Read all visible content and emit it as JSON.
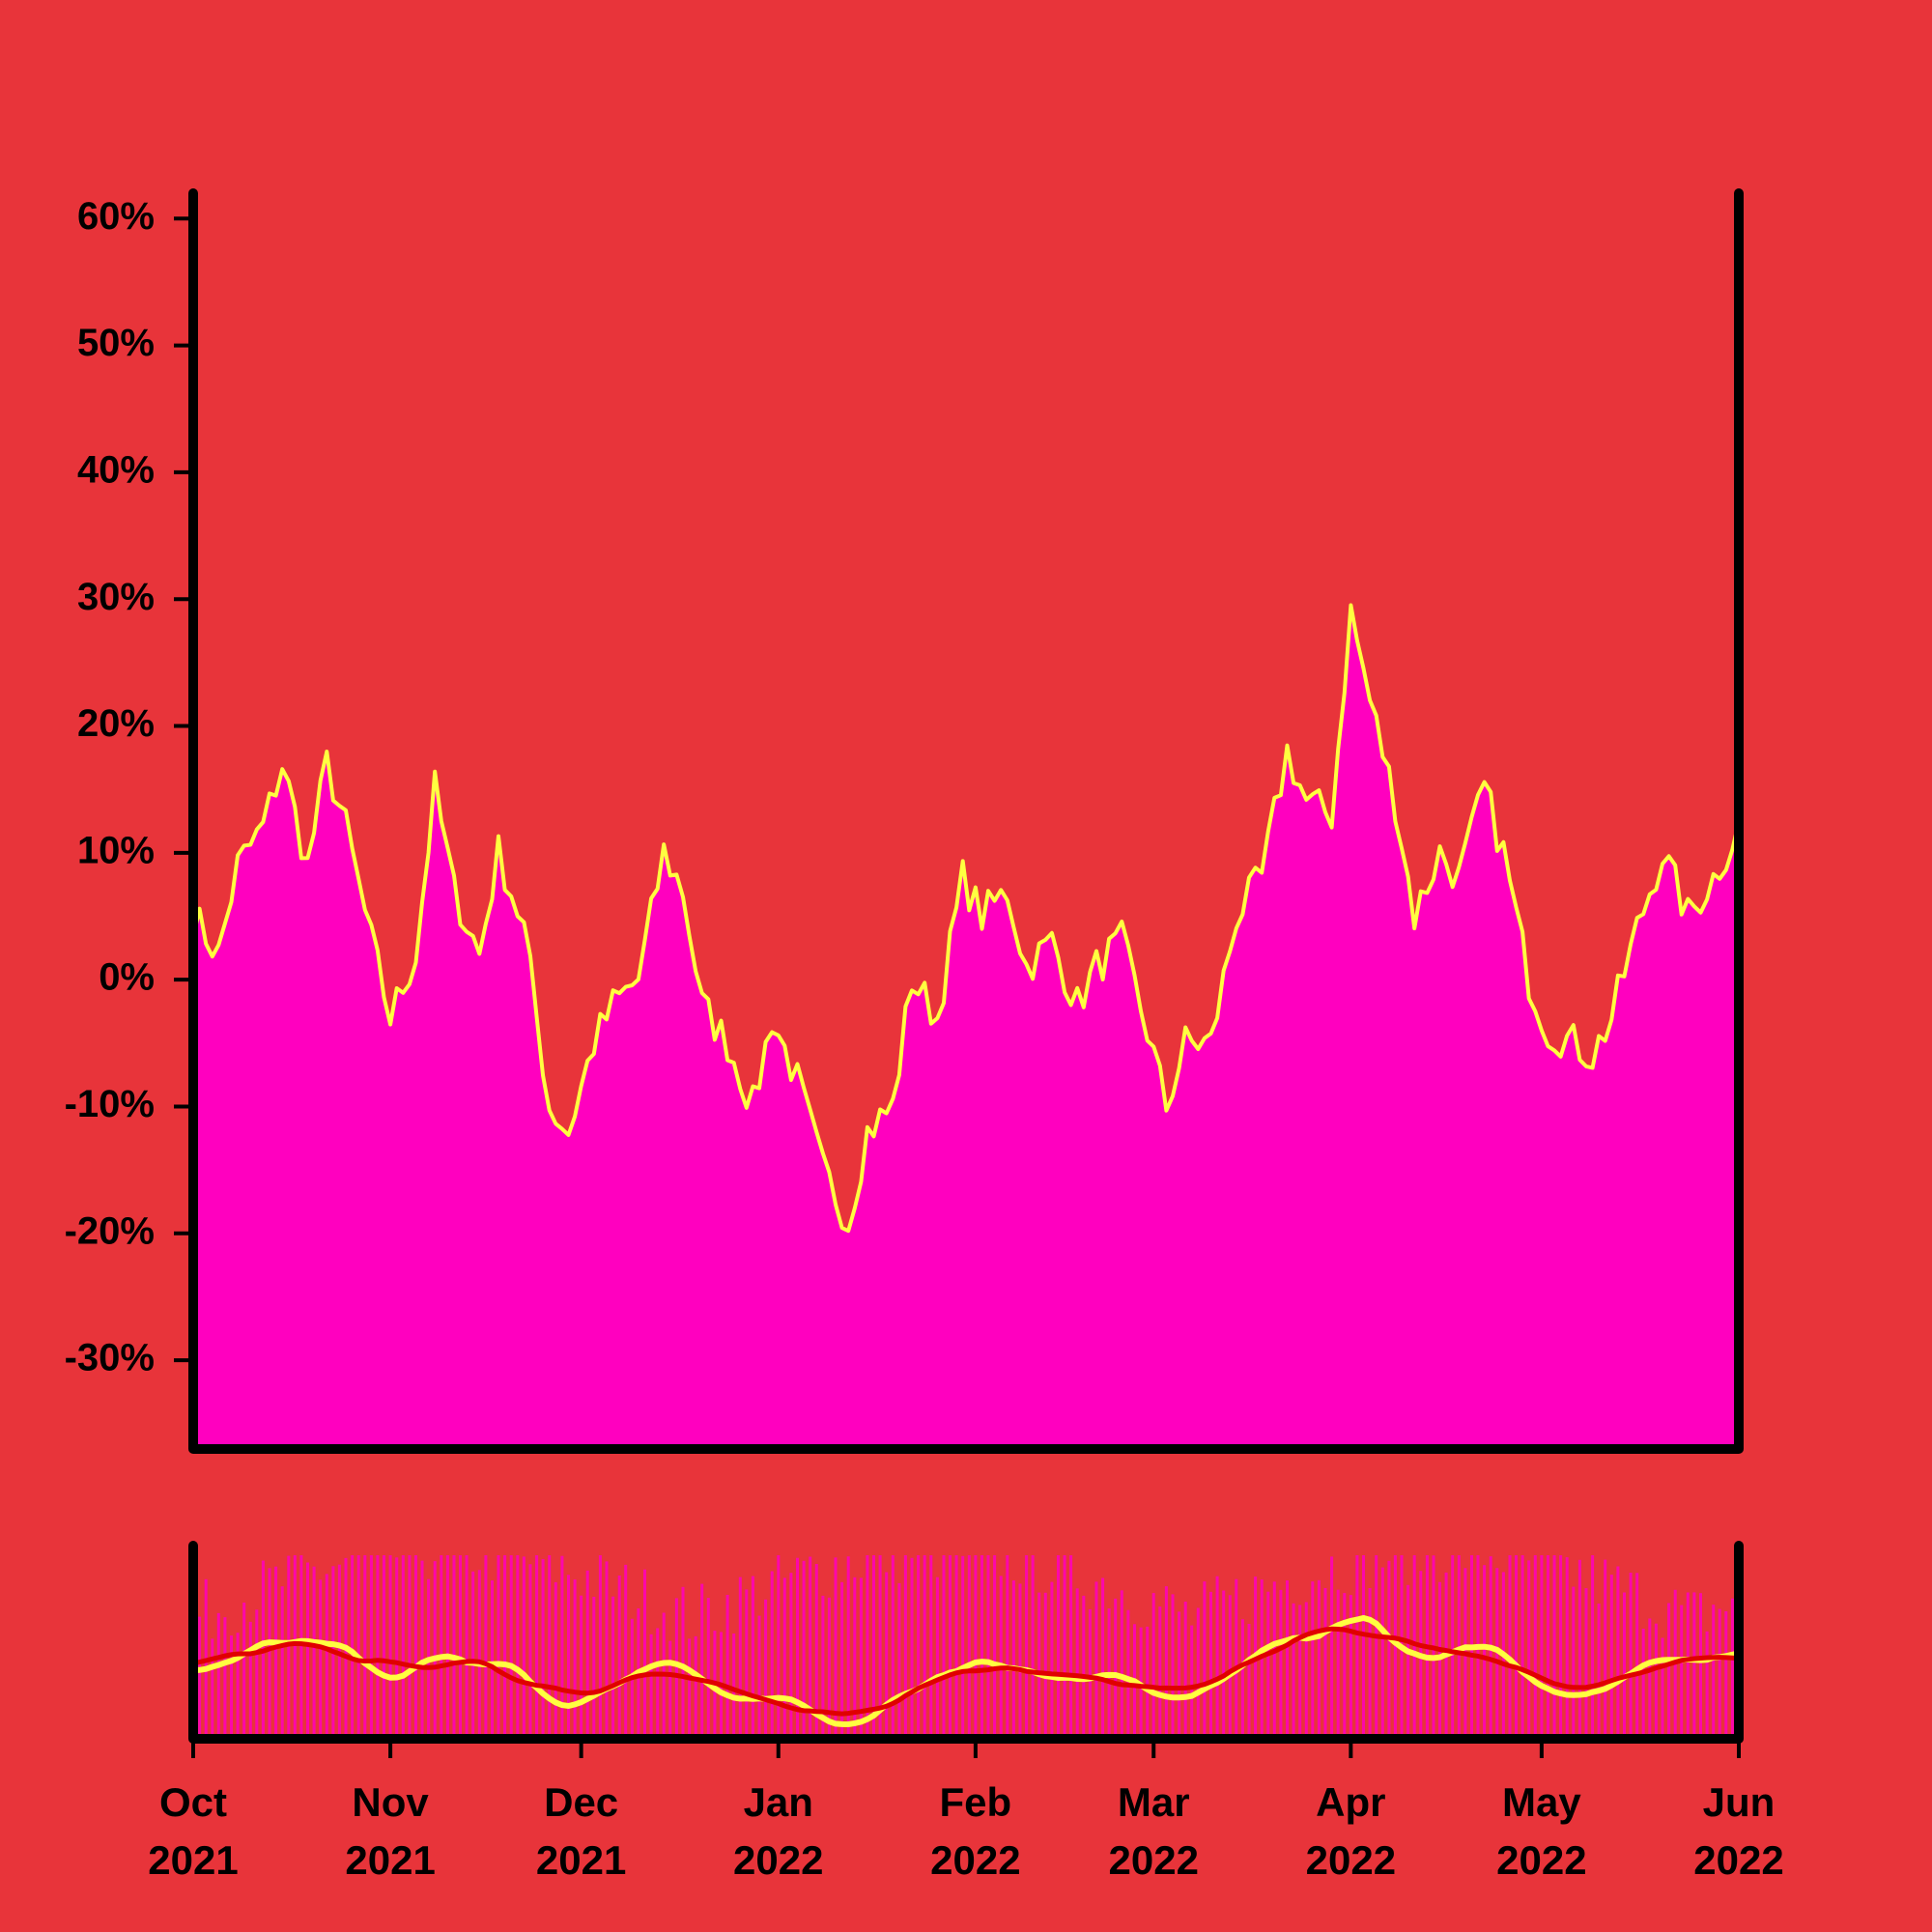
{
  "colors": {
    "background": "#E8343A",
    "area_fill": "#FF00BF",
    "line": "#FFFF40",
    "volume_bar": "#FF00BF",
    "moving_average": "#E00000",
    "axis": "#000000"
  },
  "chart_data": [
    {
      "type": "area",
      "title": "",
      "xlabel": "",
      "ylabel": "",
      "y_format": "percent",
      "xlim": [
        "2021-10-01",
        "2022-06-01"
      ],
      "ylim": [
        -37,
        62
      ],
      "yticks": [
        60,
        50,
        40,
        30,
        20,
        10,
        0,
        -10,
        -20,
        -30
      ],
      "ytick_labels": [
        "60%",
        "50%",
        "40%",
        "30%",
        "20%",
        "10%",
        "0%",
        "-10%",
        "-20%",
        "-30%"
      ],
      "grid": false,
      "legend": "none",
      "series": [
        {
          "x": [
            "2021-10-01",
            "2021-10-05",
            "2021-10-08",
            "2021-10-12",
            "2021-10-15",
            "2021-10-19",
            "2021-10-22",
            "2021-10-25",
            "2021-10-29",
            "2021-11-01",
            "2021-11-05",
            "2021-11-08",
            "2021-11-11",
            "2021-11-15",
            "2021-11-18",
            "2021-11-22",
            "2021-11-26",
            "2021-11-29",
            "2021-12-03",
            "2021-12-06",
            "2021-12-10",
            "2021-12-14",
            "2021-12-17",
            "2021-12-20",
            "2021-12-24",
            "2021-12-28",
            "2021-12-31",
            "2022-01-04",
            "2022-01-08",
            "2022-01-12",
            "2022-01-15",
            "2022-01-19",
            "2022-01-22",
            "2022-01-26",
            "2022-01-30",
            "2022-02-02",
            "2022-02-06",
            "2022-02-09",
            "2022-02-13",
            "2022-02-17",
            "2022-02-20",
            "2022-02-24",
            "2022-02-28",
            "2022-03-03",
            "2022-03-06",
            "2022-03-10",
            "2022-03-14",
            "2022-03-18",
            "2022-03-22",
            "2022-03-25",
            "2022-03-29",
            "2022-04-01",
            "2022-04-04",
            "2022-04-08",
            "2022-04-11",
            "2022-04-15",
            "2022-04-18",
            "2022-04-22",
            "2022-04-25",
            "2022-04-29",
            "2022-05-02",
            "2022-05-06",
            "2022-05-09",
            "2022-05-12",
            "2022-05-16",
            "2022-05-20",
            "2022-05-24",
            "2022-05-28",
            "2022-06-01"
          ],
          "y": [
            5,
            2,
            9,
            12,
            17,
            9,
            17,
            12,
            3,
            -3,
            2,
            15,
            7,
            2,
            10,
            4,
            -10,
            -12,
            -5,
            -2,
            0,
            10,
            7,
            -2,
            -5,
            -10,
            -3,
            -8,
            -15,
            -19,
            -12,
            -10,
            0,
            -3,
            8,
            5,
            7,
            1,
            3,
            -2,
            1,
            3,
            -4,
            -10,
            -5,
            -5,
            5,
            8,
            18,
            14,
            13,
            29,
            22,
            14,
            5,
            10,
            8,
            15,
            10,
            0,
            -4,
            -5,
            -6,
            -3,
            4,
            10,
            5,
            8,
            12
          ]
        }
      ]
    },
    {
      "type": "bar",
      "title": "",
      "xlabel": "",
      "ylabel": "",
      "xlim": [
        "2021-10-01",
        "2022-06-01"
      ],
      "xtick_labels": [
        [
          "Oct",
          "2021"
        ],
        [
          "Nov",
          "2021"
        ],
        [
          "Dec",
          "2021"
        ],
        [
          "Jan",
          "2022"
        ],
        [
          "Feb",
          "2022"
        ],
        [
          "Mar",
          "2022"
        ],
        [
          "Apr",
          "2022"
        ],
        [
          "May",
          "2022"
        ],
        [
          "Jun",
          "2022"
        ]
      ],
      "grid": false,
      "legend": "none"
    }
  ]
}
